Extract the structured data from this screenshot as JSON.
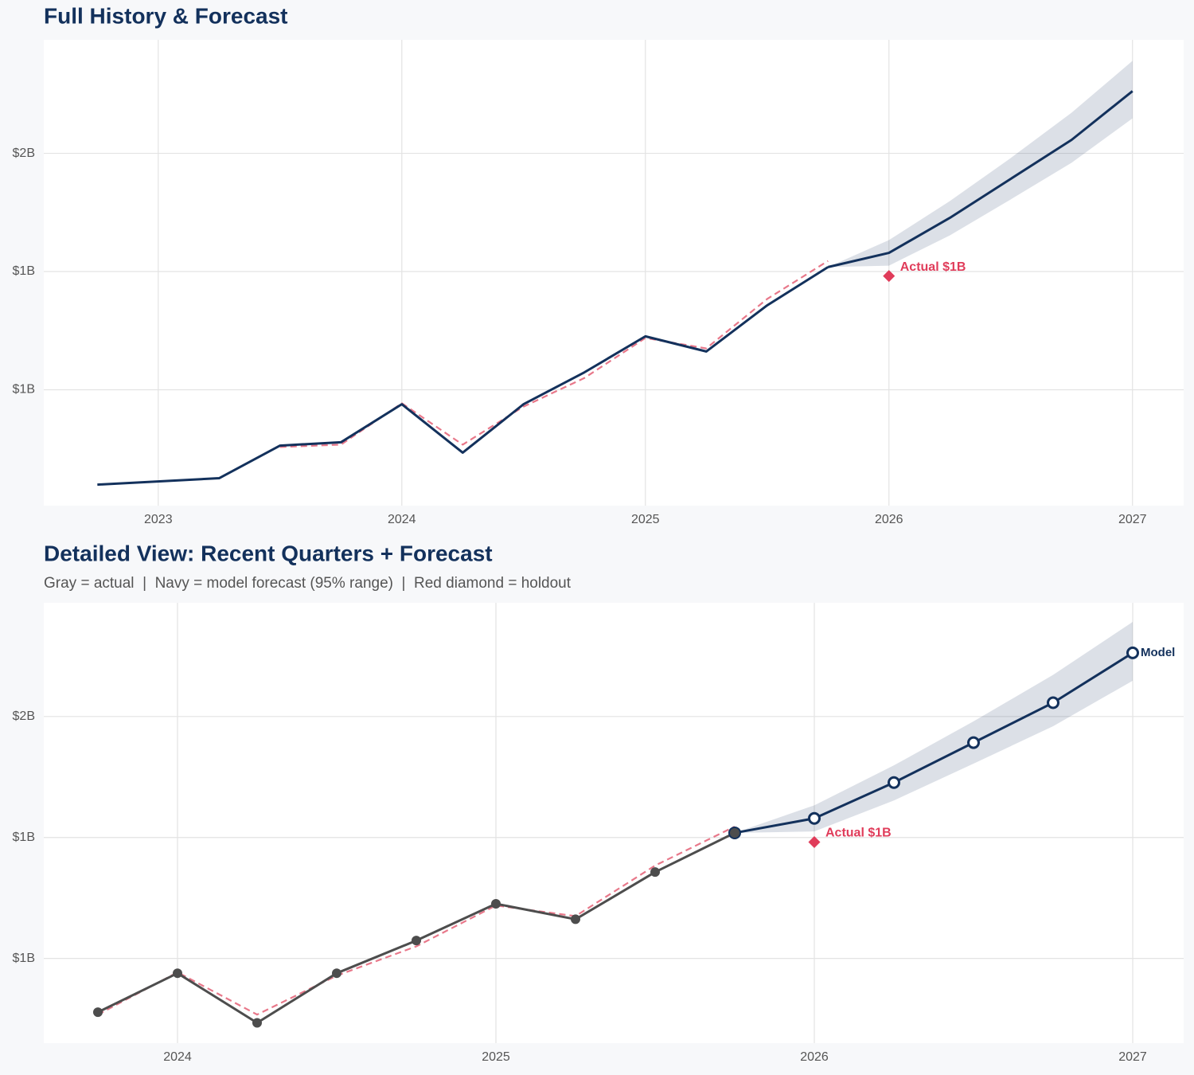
{
  "chart_data": [
    {
      "type": "line",
      "title": "Full History & Forecast",
      "grid": true,
      "xlim": [
        2022.53,
        2027.21
      ],
      "xticks": [
        2023,
        2024,
        2025,
        2026,
        2027
      ],
      "ylim": [
        0.26,
        2.23
      ],
      "yticks": [
        {
          "value": 1.75,
          "label": "$2B"
        },
        {
          "value": 1.25,
          "label": "$1B"
        },
        {
          "value": 0.75,
          "label": "$1B"
        }
      ],
      "band": {
        "color": "#13315c",
        "x": [
          2025.75,
          2026,
          2026.25,
          2026.5,
          2026.75,
          2027
        ],
        "upper": [
          1.269,
          1.383,
          1.548,
          1.73,
          1.922,
          2.141
        ],
        "lower": [
          1.269,
          1.275,
          1.403,
          1.555,
          1.71,
          1.898
        ]
      },
      "series": [
        {
          "color": "#e8788a",
          "dash": true,
          "x": [
            2023.5,
            2023.75,
            2024,
            2024.25,
            2024.5,
            2024.75,
            2025,
            2025.25,
            2025.5,
            2025.75
          ],
          "values": [
            0.508,
            0.518,
            0.693,
            0.518,
            0.679,
            0.8,
            0.969,
            0.925,
            1.134,
            1.295
          ]
        },
        {
          "color": "#13315c",
          "x": [
            2022.75,
            2023.25,
            2023.5,
            2023.75,
            2024,
            2024.25,
            2024.5,
            2024.75,
            2025,
            2025.25,
            2025.5,
            2025.75
          ],
          "values": [
            0.349,
            0.376,
            0.514,
            0.528,
            0.689,
            0.484,
            0.689,
            0.824,
            0.976,
            0.912,
            1.107,
            1.269
          ]
        },
        {
          "color": "#13315c",
          "x": [
            2025.75,
            2026,
            2026.25,
            2026.5,
            2026.75,
            2027
          ],
          "values": [
            1.269,
            1.329,
            1.477,
            1.642,
            1.807,
            2.013
          ]
        }
      ],
      "holdout": {
        "x": 2026,
        "value": 1.231,
        "label": "Actual $1B",
        "color": "#e03c5a"
      }
    },
    {
      "type": "line",
      "title": "Detailed View: Recent Quarters + Forecast",
      "subtitle": "Gray = actual  |  Navy = model forecast (95% range)  |  Red diamond = holdout",
      "grid": true,
      "xlim": [
        2023.58,
        2027.16
      ],
      "xticks": [
        2024,
        2025,
        2026,
        2027
      ],
      "ylim": [
        0.4,
        2.22
      ],
      "yticks": [
        {
          "value": 1.75,
          "label": "$2B"
        },
        {
          "value": 1.25,
          "label": "$1B"
        },
        {
          "value": 0.75,
          "label": "$1B"
        }
      ],
      "band": {
        "color": "#13315c",
        "x": [
          2025.75,
          2026,
          2026.25,
          2026.5,
          2026.75,
          2027
        ],
        "upper": [
          1.269,
          1.383,
          1.548,
          1.73,
          1.922,
          2.141
        ],
        "lower": [
          1.269,
          1.275,
          1.403,
          1.555,
          1.71,
          1.898
        ]
      },
      "series": [
        {
          "color": "#e8788a",
          "dash": true,
          "x": [
            2023.75,
            2024,
            2024.25,
            2024.5,
            2024.75,
            2025,
            2025.25,
            2025.5,
            2025.75
          ],
          "values": [
            0.518,
            0.693,
            0.518,
            0.679,
            0.8,
            0.969,
            0.925,
            1.134,
            1.295
          ]
        },
        {
          "color": "#13315c",
          "markers": "open",
          "end_label": "Model",
          "x": [
            2025.75,
            2026,
            2026.25,
            2026.5,
            2026.75,
            2027
          ],
          "values": [
            1.269,
            1.329,
            1.477,
            1.642,
            1.807,
            2.013
          ]
        },
        {
          "color": "#4d4d4d",
          "markers": "filled",
          "x": [
            2023.75,
            2024,
            2024.25,
            2024.5,
            2024.75,
            2025,
            2025.25,
            2025.5,
            2025.75
          ],
          "values": [
            0.528,
            0.689,
            0.484,
            0.689,
            0.824,
            0.976,
            0.912,
            1.107,
            1.269
          ]
        }
      ],
      "holdout": {
        "x": 2026,
        "value": 1.231,
        "label": "Actual $1B",
        "color": "#e03c5a"
      }
    }
  ]
}
